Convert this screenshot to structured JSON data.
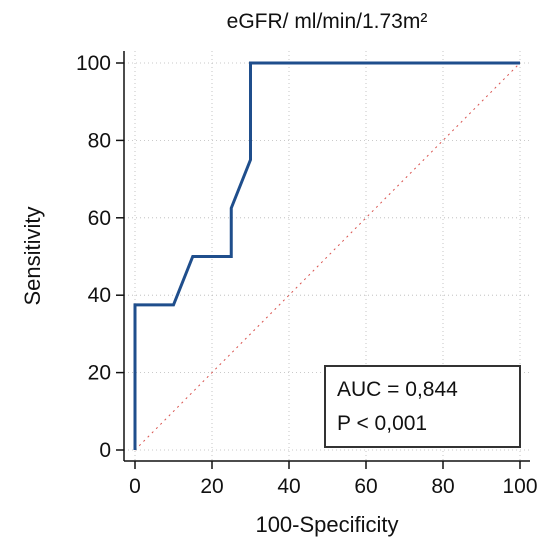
{
  "chart_data": {
    "type": "line",
    "title": "eGFR/ ml/min/1.73m²",
    "xlabel": "100-Specificity",
    "ylabel": "Sensitivity",
    "xlim": [
      0,
      100
    ],
    "ylim": [
      0,
      100
    ],
    "xticks": [
      0,
      20,
      40,
      60,
      80,
      100
    ],
    "yticks": [
      0,
      20,
      40,
      60,
      80,
      100
    ],
    "grid": true,
    "series": [
      {
        "style": "solid",
        "color": "#1f4e8c",
        "x": [
          0,
          0,
          10,
          15,
          25,
          25,
          30,
          30,
          100
        ],
        "y": [
          0,
          37.5,
          37.5,
          50,
          50,
          62.5,
          75,
          100,
          100
        ]
      },
      {
        "style": "dotted",
        "color": "#d9534f",
        "x": [
          0,
          100
        ],
        "y": [
          0,
          100
        ]
      }
    ],
    "annotation": {
      "lines": [
        "AUC = 0,844",
        "P < 0,001"
      ],
      "position": "bottom-right"
    }
  }
}
